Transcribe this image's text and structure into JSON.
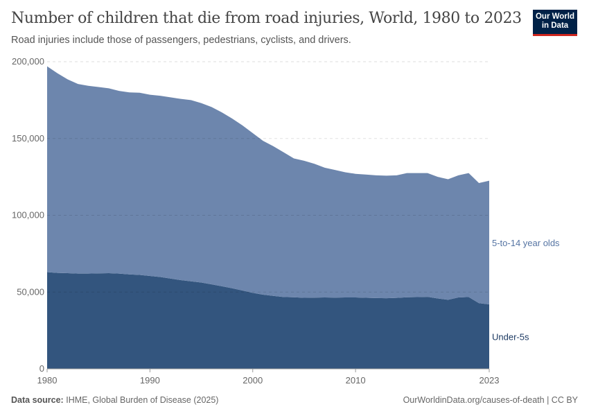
{
  "header": {
    "title": "Number of children that die from road injuries, World, 1980 to 2023",
    "subtitle": "Road injuries include those of passengers, pedestrians, cyclists, and drivers.",
    "logo_line1": "Our World",
    "logo_line2": "in Data"
  },
  "footer": {
    "source_label": "Data source:",
    "source": "IHME, Global Burden of Disease (2025)",
    "credit": "OurWorldinData.org/causes-of-death | CC BY"
  },
  "chart_data": {
    "type": "area",
    "stacked": true,
    "title": "Number of children that die from road injuries, World, 1980 to 2023",
    "xlim": [
      1980,
      2023
    ],
    "ylim": [
      0,
      200000
    ],
    "grid": "horizontal dashed",
    "x_ticks": [
      "1980",
      "1990",
      "2000",
      "2010",
      "2023"
    ],
    "y_ticks": [
      "0",
      "50,000",
      "100,000",
      "150,000",
      "200,000"
    ],
    "x": [
      1980,
      1981,
      1982,
      1983,
      1984,
      1985,
      1986,
      1987,
      1988,
      1989,
      1990,
      1991,
      1992,
      1993,
      1994,
      1995,
      1996,
      1997,
      1998,
      1999,
      2000,
      2001,
      2002,
      2003,
      2004,
      2005,
      2006,
      2007,
      2008,
      2009,
      2010,
      2011,
      2012,
      2013,
      2014,
      2015,
      2016,
      2017,
      2018,
      2019,
      2020,
      2021,
      2022,
      2023
    ],
    "series": [
      {
        "name": "Under-5s",
        "color": "#33557e",
        "label_color": "#1d3a63",
        "values": [
          63000,
          62500,
          62300,
          62000,
          62000,
          62200,
          62300,
          62000,
          61500,
          61200,
          60500,
          59800,
          58800,
          57800,
          57000,
          56200,
          55000,
          53800,
          52500,
          51000,
          49500,
          48300,
          47500,
          46800,
          46600,
          46300,
          46400,
          46500,
          46400,
          46500,
          46500,
          46300,
          46100,
          46000,
          46200,
          46600,
          46700,
          46900,
          45800,
          45000,
          46500,
          46800,
          42800,
          42000
        ]
      },
      {
        "name": "5-to-14 year olds",
        "color": "#6d86ad",
        "label_color": "#5574a3",
        "values": [
          134000,
          130000,
          126200,
          123500,
          122300,
          121300,
          120400,
          119000,
          118500,
          118600,
          118000,
          118000,
          118000,
          118000,
          118000,
          116800,
          115500,
          113200,
          110500,
          107500,
          104000,
          100200,
          97500,
          94200,
          90400,
          89200,
          87100,
          84500,
          83100,
          81500,
          80500,
          80200,
          79900,
          79800,
          79800,
          80900,
          80800,
          80600,
          79200,
          78500,
          79500,
          80700,
          78200,
          80500
        ]
      }
    ]
  }
}
